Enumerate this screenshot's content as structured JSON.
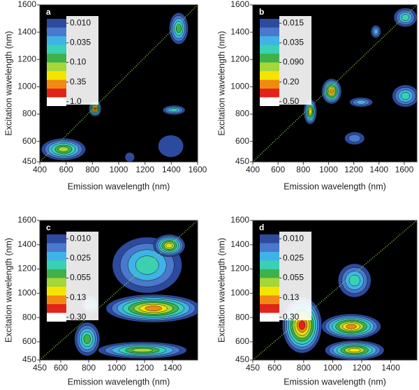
{
  "chart_data": [
    {
      "type": "contour",
      "panel": "a",
      "xlabel": "Emission wavelength (nm)",
      "ylabel": "Excitation wavelength (nm)",
      "xlim": [
        400,
        1600
      ],
      "xticks": [
        400,
        600,
        800,
        1000,
        1200,
        1400,
        1600
      ],
      "ylim": [
        450,
        1600
      ],
      "yticks": [
        450,
        600,
        800,
        1000,
        1200,
        1400,
        1600
      ],
      "colorbar": {
        "colors": [
          "#2c4a9e",
          "#4a78cc",
          "#3fb3e6",
          "#3ad0b4",
          "#3fb14a",
          "#a5d63a",
          "#f4e500",
          "#f08a12",
          "#e2231a",
          "#ffffff"
        ],
        "levels": [
          {
            "value": 0.01,
            "label": "0.010"
          },
          0.035,
          {
            "value": 0.1,
            "label": "0.10"
          },
          0.35,
          {
            "value": 1,
            "label": "1.0"
          }
        ]
      }
    },
    {
      "type": "contour",
      "panel": "b",
      "xlabel": "Emission wavelength (nm)",
      "ylabel": "Excitation wavelength (nm)",
      "xlim": [
        400,
        1700
      ],
      "xticks": [
        400,
        600,
        800,
        1000,
        1200,
        1400,
        1600
      ],
      "ylim": [
        450,
        1600
      ],
      "yticks": [
        450,
        600,
        800,
        1000,
        1200,
        1400,
        1600
      ],
      "colorbar": {
        "colors": [
          "#2c4a9e",
          "#4a78cc",
          "#3fb3e6",
          "#3ad0b4",
          "#3fb14a",
          "#a5d63a",
          "#f4e500",
          "#f08a12",
          "#e2231a",
          "#ffffff"
        ],
        "levels": [
          0.015,
          0.035,
          {
            "value": 0.09,
            "label": "0.090"
          },
          {
            "value": 0.2,
            "label": "0.20"
          },
          {
            "value": 0.5,
            "label": "0.50"
          }
        ]
      }
    },
    {
      "type": "contour",
      "panel": "c",
      "xlabel": "Emission wavelength (nm)",
      "ylabel": "Excitation wavelength (nm)",
      "xlim": [
        450,
        1580
      ],
      "xticks": [
        450,
        600,
        800,
        1000,
        1200,
        1400
      ],
      "ylim": [
        450,
        1600
      ],
      "yticks": [
        450,
        600,
        800,
        1000,
        1200,
        1400,
        1600
      ],
      "colorbar": {
        "colors": [
          "#2c4a9e",
          "#4a78cc",
          "#3fb3e6",
          "#3ad0b4",
          "#3fb14a",
          "#a5d63a",
          "#f4e500",
          "#f08a12",
          "#e2231a",
          "#ffffff"
        ],
        "levels": [
          {
            "value": 0.01,
            "label": "0.010"
          },
          0.025,
          0.055,
          0.13,
          {
            "value": 0.3,
            "label": "0.30"
          }
        ]
      }
    },
    {
      "type": "contour",
      "panel": "d",
      "xlabel": "Emission wavelength (nm)",
      "ylabel": "Excitation wavelength (nm)",
      "xlim": [
        450,
        1580
      ],
      "xticks": [
        450,
        600,
        800,
        1000,
        1200,
        1400
      ],
      "ylim": [
        450,
        1600
      ],
      "yticks": [
        450,
        600,
        800,
        1000,
        1200,
        1400,
        1600
      ],
      "colorbar": {
        "colors": [
          "#2c4a9e",
          "#4a78cc",
          "#3fb3e6",
          "#3ad0b4",
          "#3fb14a",
          "#a5d63a",
          "#f4e500",
          "#f08a12",
          "#e2231a",
          "#ffffff"
        ],
        "levels": [
          {
            "value": 0.01,
            "label": "0.010"
          },
          0.025,
          0.055,
          0.13,
          {
            "value": 0.3,
            "label": "0.30"
          }
        ]
      }
    }
  ]
}
